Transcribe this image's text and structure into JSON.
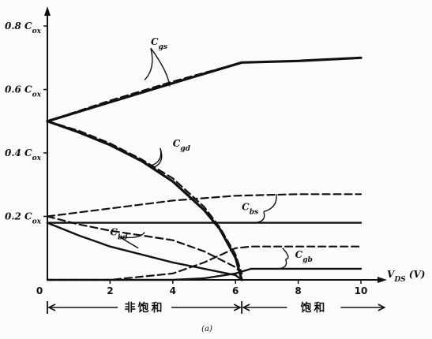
{
  "chart_data": {
    "type": "line",
    "xlabel": "V_DS (V)",
    "xticks": [
      0,
      2,
      4,
      6,
      8,
      10
    ],
    "xlim": [
      0,
      10
    ],
    "ylim": [
      0,
      0.8
    ],
    "yticks": [
      {
        "value": 0.2,
        "label": "0.2 C_ox"
      },
      {
        "value": 0.4,
        "label": "0.4 C_ox"
      },
      {
        "value": 0.6,
        "label": "0.6 C_ox"
      },
      {
        "value": 0.8,
        "label": "0.8 C_ox"
      }
    ],
    "origin_label": "0",
    "series": [
      {
        "name": "C_gs",
        "style": "solid-thick",
        "x": [
          0,
          2,
          4,
          6.2,
          8,
          10
        ],
        "y": [
          0.5,
          0.56,
          0.62,
          0.685,
          0.69,
          0.7
        ]
      },
      {
        "name": "C_gs",
        "style": "dashed",
        "x": [
          0,
          2,
          4,
          6.2,
          8,
          10
        ],
        "y": [
          0.5,
          0.565,
          0.625,
          0.685,
          0.69,
          0.7
        ]
      },
      {
        "name": "C_gd",
        "style": "solid-thick",
        "x": [
          0,
          1,
          2,
          3,
          4,
          5,
          5.5,
          6,
          6.2
        ],
        "y": [
          0.5,
          0.465,
          0.425,
          0.375,
          0.31,
          0.22,
          0.16,
          0.07,
          0
        ]
      },
      {
        "name": "C_gd",
        "style": "dashed",
        "x": [
          0,
          1,
          2,
          3,
          4,
          5,
          5.5,
          6,
          6.2
        ],
        "y": [
          0.5,
          0.47,
          0.43,
          0.38,
          0.32,
          0.23,
          0.165,
          0.08,
          0.02
        ]
      },
      {
        "name": "C_bs",
        "style": "solid",
        "x": [
          0,
          10
        ],
        "y": [
          0.18,
          0.18
        ]
      },
      {
        "name": "C_bs",
        "style": "dashed",
        "x": [
          0,
          2,
          4,
          6,
          8,
          10
        ],
        "y": [
          0.2,
          0.225,
          0.25,
          0.265,
          0.27,
          0.27
        ]
      },
      {
        "name": "C_bd",
        "style": "solid",
        "x": [
          0,
          1,
          2,
          3,
          4,
          5,
          6,
          6.2
        ],
        "y": [
          0.18,
          0.14,
          0.105,
          0.08,
          0.055,
          0.035,
          0.015,
          0
        ]
      },
      {
        "name": "C_bd",
        "style": "dashed",
        "x": [
          0,
          1,
          2,
          3,
          4,
          5,
          6,
          6.2
        ],
        "y": [
          0.2,
          0.175,
          0.155,
          0.14,
          0.125,
          0.09,
          0.04,
          0.02
        ]
      },
      {
        "name": "C_gb",
        "style": "solid",
        "x": [
          0,
          2,
          4,
          5,
          6,
          6.5,
          8,
          10
        ],
        "y": [
          0,
          0,
          0,
          0.005,
          0.02,
          0.035,
          0.035,
          0.035
        ]
      },
      {
        "name": "C_gb",
        "style": "dashed",
        "x": [
          0,
          2,
          4,
          5,
          6,
          6.5,
          8,
          10
        ],
        "y": [
          0,
          0,
          0.02,
          0.055,
          0.1,
          0.105,
          0.105,
          0.105
        ]
      }
    ],
    "curve_labels": [
      {
        "text": "C_gs",
        "x": 3.3,
        "y": 0.74
      },
      {
        "text": "C_gd",
        "x": 4.0,
        "y": 0.42
      },
      {
        "text": "C_bs",
        "x": 6.2,
        "y": 0.22
      },
      {
        "text": "C_bd",
        "x": 2.0,
        "y": 0.14
      },
      {
        "text": "C_gb",
        "x": 7.9,
        "y": 0.07
      }
    ],
    "regions": [
      {
        "label": "非饱和",
        "from": 0,
        "to": 6.2
      },
      {
        "label": "饱和",
        "from": 6.2,
        "to": 10.8
      }
    ],
    "caption": "(a)"
  }
}
